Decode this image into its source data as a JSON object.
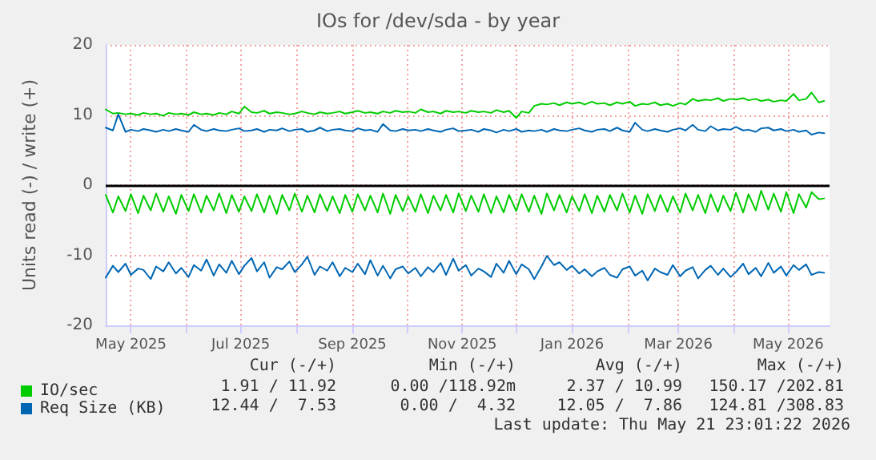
{
  "chart_data": {
    "type": "line",
    "title": "IOs for /dev/sda - by year",
    "ylabel": "Units read (-) / write (+)",
    "x": [
      "2025-04-17",
      "2025-04-21",
      "2025-04-24",
      "2025-04-28",
      "2025-05-01",
      "2025-05-05",
      "2025-05-08",
      "2025-05-12",
      "2025-05-15",
      "2025-05-19",
      "2025-05-22",
      "2025-05-26",
      "2025-05-29",
      "2025-06-02",
      "2025-06-05",
      "2025-06-09",
      "2025-06-12",
      "2025-06-16",
      "2025-06-19",
      "2025-06-23",
      "2025-06-26",
      "2025-06-30",
      "2025-07-03",
      "2025-07-07",
      "2025-07-10",
      "2025-07-14",
      "2025-07-17",
      "2025-07-21",
      "2025-07-24",
      "2025-07-28",
      "2025-07-31",
      "2025-08-04",
      "2025-08-07",
      "2025-08-11",
      "2025-08-14",
      "2025-08-18",
      "2025-08-21",
      "2025-08-25",
      "2025-08-28",
      "2025-09-01",
      "2025-09-04",
      "2025-09-08",
      "2025-09-11",
      "2025-09-15",
      "2025-09-18",
      "2025-09-22",
      "2025-09-25",
      "2025-09-29",
      "2025-10-02",
      "2025-10-06",
      "2025-10-09",
      "2025-10-13",
      "2025-10-16",
      "2025-10-20",
      "2025-10-23",
      "2025-10-27",
      "2025-10-30",
      "2025-11-03",
      "2025-11-06",
      "2025-11-10",
      "2025-11-13",
      "2025-11-17",
      "2025-11-20",
      "2025-11-24",
      "2025-11-27",
      "2025-12-01",
      "2025-12-04",
      "2025-12-08",
      "2025-12-11",
      "2025-12-15",
      "2025-12-18",
      "2025-12-22",
      "2025-12-25",
      "2025-12-29",
      "2026-01-01",
      "2026-01-05",
      "2026-01-08",
      "2026-01-12",
      "2026-01-15",
      "2026-01-19",
      "2026-01-22",
      "2026-01-26",
      "2026-01-29",
      "2026-02-02",
      "2026-02-05",
      "2026-02-09",
      "2026-02-12",
      "2026-02-16",
      "2026-02-19",
      "2026-02-23",
      "2026-02-26",
      "2026-03-02",
      "2026-03-05",
      "2026-03-09",
      "2026-03-12",
      "2026-03-16",
      "2026-03-19",
      "2026-03-23",
      "2026-03-26",
      "2026-03-30",
      "2026-04-02",
      "2026-04-06",
      "2026-04-09",
      "2026-04-13",
      "2026-04-16",
      "2026-04-20",
      "2026-04-23",
      "2026-04-27",
      "2026-04-30",
      "2026-05-04",
      "2026-05-07",
      "2026-05-11",
      "2026-05-14",
      "2026-05-18",
      "2026-05-21"
    ],
    "series": [
      {
        "color": "#00cc00",
        "values": [
          -1.4,
          -3.9,
          -1.6,
          -3.7,
          -1.3,
          -4.0,
          -1.5,
          -3.6,
          -1.2,
          -3.8,
          -1.6,
          -4.1,
          -1.4,
          -3.7,
          -1.3,
          -3.9,
          -1.5,
          -3.6,
          -1.2,
          -4.0,
          -1.4,
          -3.8,
          -1.6,
          -3.7,
          -1.3,
          -3.9,
          -1.5,
          -4.1,
          -1.4,
          -3.6,
          -1.2,
          -3.8,
          -1.5,
          -3.9,
          -1.3,
          -3.7,
          -1.6,
          -4.0,
          -1.4,
          -3.8,
          -1.3,
          -3.6,
          -1.5,
          -3.9,
          -1.2,
          -4.1,
          -1.4,
          -3.7,
          -1.6,
          -3.8,
          -1.3,
          -4.0,
          -1.5,
          -3.6,
          -1.4,
          -3.9,
          -1.2,
          -3.7,
          -1.5,
          -3.8,
          -1.3,
          -4.0,
          -1.6,
          -3.9,
          -1.4,
          -3.7,
          -1.3,
          -3.8,
          -1.5,
          -4.1,
          -1.2,
          -3.6,
          -1.4,
          -3.9,
          -1.6,
          -3.7,
          -1.3,
          -4.0,
          -1.5,
          -3.8,
          -1.4,
          -3.6,
          -1.2,
          -3.9,
          -1.5,
          -4.1,
          -1.3,
          -3.7,
          -1.4,
          -3.8,
          -1.6,
          -3.9,
          -1.2,
          -3.6,
          -1.4,
          -4.0,
          -1.3,
          -3.8,
          -1.5,
          -3.7,
          -1.1,
          -3.9,
          -1.3,
          -3.6,
          -0.8,
          -3.5,
          -1.2,
          -3.8,
          -1.0,
          -4.0,
          -1.3,
          -3.2,
          -1.0,
          -2.0,
          -1.9
        ]
      },
      {
        "name": "IO/sec",
        "color": "#00cc00",
        "values": [
          10.8,
          10.2,
          10.3,
          10.1,
          10.2,
          10.0,
          10.3,
          10.1,
          10.2,
          9.9,
          10.3,
          10.1,
          10.2,
          10.0,
          10.4,
          10.1,
          10.2,
          10.0,
          10.3,
          10.1,
          10.5,
          10.2,
          11.2,
          10.4,
          10.3,
          10.6,
          10.2,
          10.4,
          10.3,
          10.1,
          10.2,
          10.5,
          10.3,
          10.1,
          10.4,
          10.2,
          10.3,
          10.5,
          10.2,
          10.4,
          10.6,
          10.3,
          10.4,
          10.2,
          10.5,
          10.3,
          10.6,
          10.4,
          10.5,
          10.3,
          10.8,
          10.4,
          10.5,
          10.2,
          10.6,
          10.4,
          10.5,
          10.3,
          10.6,
          10.4,
          10.5,
          10.3,
          10.7,
          10.4,
          10.6,
          9.6,
          10.5,
          10.3,
          11.3,
          11.6,
          11.5,
          11.7,
          11.4,
          11.8,
          11.6,
          11.8,
          11.5,
          11.9,
          11.6,
          11.7,
          11.4,
          11.8,
          11.6,
          11.9,
          11.3,
          11.6,
          11.5,
          11.8,
          11.4,
          11.6,
          11.3,
          11.7,
          11.5,
          12.3,
          12.0,
          12.2,
          12.1,
          12.4,
          12.0,
          12.3,
          12.2,
          12.4,
          12.1,
          12.3,
          12.0,
          12.2,
          11.9,
          12.1,
          12.0,
          13.0,
          12.1,
          12.3,
          13.2,
          11.8,
          12.0
        ]
      },
      {
        "color": "#0066b3",
        "values": [
          -13.2,
          -11.5,
          -12.4,
          -11.2,
          -12.8,
          -11.9,
          -12.1,
          -13.4,
          -11.6,
          -12.3,
          -11.0,
          -12.6,
          -11.8,
          -13.1,
          -11.4,
          -12.2,
          -10.6,
          -12.9,
          -11.3,
          -12.5,
          -10.8,
          -12.7,
          -11.5,
          -10.4,
          -12.3,
          -11.0,
          -13.2,
          -11.7,
          -12.0,
          -10.9,
          -12.4,
          -11.3,
          -10.2,
          -12.8,
          -11.6,
          -12.2,
          -11.0,
          -13.0,
          -11.8,
          -12.4,
          -11.2,
          -12.7,
          -10.7,
          -12.9,
          -11.5,
          -13.3,
          -12.0,
          -11.6,
          -12.6,
          -11.8,
          -13.0,
          -11.7,
          -12.4,
          -11.1,
          -12.8,
          -10.5,
          -12.2,
          -11.4,
          -12.9,
          -11.9,
          -12.3,
          -13.1,
          -11.2,
          -12.5,
          -10.8,
          -12.7,
          -11.3,
          -12.0,
          -13.4,
          -11.6,
          -10.1,
          -11.4,
          -11.0,
          -12.1,
          -11.5,
          -12.6,
          -12.0,
          -13.0,
          -12.3,
          -11.8,
          -12.8,
          -13.2,
          -12.0,
          -11.6,
          -12.9,
          -12.2,
          -13.6,
          -11.9,
          -12.4,
          -12.8,
          -11.4,
          -13.0,
          -12.2,
          -11.7,
          -13.3,
          -12.1,
          -11.5,
          -12.8,
          -11.9,
          -13.1,
          -12.4,
          -11.2,
          -12.7,
          -11.8,
          -13.0,
          -11.1,
          -12.5,
          -11.6,
          -12.9,
          -11.4,
          -12.1,
          -11.3,
          -12.8,
          -12.4,
          -12.5
        ]
      },
      {
        "name": "Req Size (KB)",
        "color": "#0066b3",
        "values": [
          8.2,
          7.8,
          10.1,
          7.6,
          7.9,
          7.7,
          8.0,
          7.8,
          7.6,
          7.9,
          7.7,
          8.0,
          7.8,
          7.6,
          8.6,
          7.9,
          7.7,
          8.0,
          7.8,
          7.7,
          7.9,
          8.1,
          7.7,
          7.8,
          8.0,
          7.6,
          7.9,
          7.8,
          8.1,
          7.7,
          7.9,
          8.0,
          7.6,
          7.8,
          8.2,
          7.7,
          7.9,
          8.0,
          7.8,
          7.7,
          8.1,
          7.8,
          7.9,
          7.6,
          8.7,
          7.8,
          7.7,
          8.0,
          7.8,
          7.9,
          7.7,
          8.0,
          7.8,
          7.6,
          7.9,
          8.1,
          7.7,
          7.8,
          7.9,
          7.6,
          8.0,
          7.8,
          7.5,
          7.9,
          7.7,
          8.0,
          7.6,
          7.8,
          7.7,
          7.9,
          7.6,
          8.0,
          7.8,
          7.7,
          7.9,
          8.1,
          7.8,
          7.6,
          7.9,
          8.0,
          7.7,
          8.2,
          7.8,
          7.6,
          8.9,
          7.9,
          7.7,
          8.0,
          7.8,
          7.6,
          7.9,
          8.1,
          7.8,
          8.6,
          7.9,
          7.7,
          8.4,
          7.8,
          8.0,
          7.9,
          8.3,
          7.8,
          7.9,
          7.6,
          8.1,
          8.2,
          7.8,
          8.0,
          7.7,
          7.9,
          7.6,
          7.8,
          7.2,
          7.5,
          7.4
        ]
      }
    ],
    "xlim": [
      "2025-04-17",
      "2026-05-24"
    ],
    "xticks": [
      {
        "value": "2025-05-01",
        "label": "May 2025"
      },
      {
        "value": "2025-06-01",
        "label": null
      },
      {
        "value": "2025-07-01",
        "label": "Jul 2025"
      },
      {
        "value": "2025-08-01",
        "label": null
      },
      {
        "value": "2025-09-01",
        "label": "Sep 2025"
      },
      {
        "value": "2025-10-01",
        "label": null
      },
      {
        "value": "2025-11-01",
        "label": "Nov 2025"
      },
      {
        "value": "2025-12-01",
        "label": null
      },
      {
        "value": "2026-01-01",
        "label": "Jan 2026"
      },
      {
        "value": "2026-02-01",
        "label": null
      },
      {
        "value": "2026-03-01",
        "label": "Mar 2026"
      },
      {
        "value": "2026-04-01",
        "label": null
      },
      {
        "value": "2026-05-01",
        "label": "May 2026"
      }
    ],
    "ylim": [
      -20,
      20
    ],
    "yticks": [
      -20,
      -10,
      0,
      10,
      20
    ],
    "ref_lines": [
      {
        "axis": "y",
        "value": 0,
        "color": "#000000"
      }
    ],
    "grid": true,
    "legend": "bottom left",
    "marker": "none",
    "line_style": "solid",
    "annotations": [
      "Cur (-/+)",
      "Min (-/+)",
      "Avg (-/+)",
      "Max (-/+)",
      "1.91 / 11.92",
      "0.00 /118.92m",
      "2.37 / 10.99",
      "150.17 /202.81",
      "12.44 /  7.53",
      "0.00 /  4.32",
      "12.05 /  7.86",
      "124.81 /308.83",
      "Last update: Thu May 21 23:01:22 2026"
    ]
  }
}
